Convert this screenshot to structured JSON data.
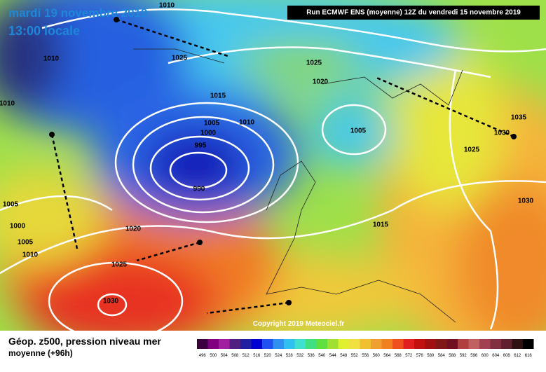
{
  "header": {
    "date": "mardi 19 novembre 2019",
    "time": "13:00 locale",
    "run": "Run ECMWF ENS (moyenne) 12Z du vendredi 15 novembre 2019"
  },
  "isobar_labels": [
    "1010",
    "1025",
    "1025",
    "1020",
    "1010",
    "1010",
    "1015",
    "1005",
    "1010",
    "1000",
    "995",
    "990",
    "1005",
    "1035",
    "1030",
    "1025",
    "1030",
    "1005",
    "1000",
    "1005",
    "1010",
    "1020",
    "1015",
    "1025",
    "1030"
  ],
  "copyright": "Copyright 2019 Meteociel.fr",
  "legend": {
    "title": "Géop. z500, pression niveau mer",
    "subtitle": "moyenne  (+96h)",
    "scale": [
      "496",
      "500",
      "504",
      "508",
      "512",
      "516",
      "520",
      "524",
      "528",
      "532",
      "536",
      "540",
      "544",
      "548",
      "552",
      "556",
      "560",
      "564",
      "568",
      "572",
      "576",
      "580",
      "584",
      "588",
      "592",
      "596",
      "600",
      "604",
      "608",
      "612",
      "616"
    ]
  }
}
